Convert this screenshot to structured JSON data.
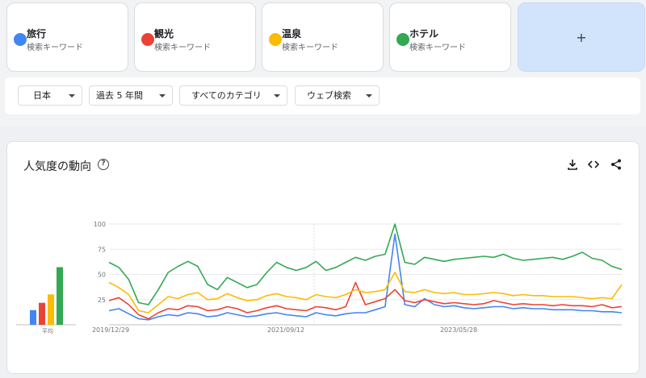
{
  "terms": [
    {
      "name": "旅行",
      "sub": "検索キーワード",
      "color": "#4285f4"
    },
    {
      "name": "観光",
      "sub": "検索キーワード",
      "color": "#ea4335"
    },
    {
      "name": "温泉",
      "sub": "検索キーワード",
      "color": "#fbbc04"
    },
    {
      "name": "ホテル",
      "sub": "検索キーワード",
      "color": "#34a853"
    }
  ],
  "add_button": "+",
  "filters": {
    "region": "日本",
    "period": "過去 5 年間",
    "category": "すべてのカテゴリ",
    "search_type": "ウェブ検索"
  },
  "panel": {
    "title": "人気度の動向",
    "help": "?",
    "icons": [
      "download-icon",
      "embed-code-icon",
      "share-icon"
    ]
  },
  "chart_data": {
    "type": "line",
    "title": "人気度の動向",
    "ylim": [
      0,
      100
    ],
    "yticks": [
      "100",
      "75",
      "50",
      "25"
    ],
    "xticks": [
      "2019/12/29",
      "2021/09/12",
      "2023/05/28"
    ],
    "x_range": [
      "2019/12/29",
      "2024/12"
    ],
    "grid": true,
    "series": [
      {
        "name": "旅行",
        "color": "#4285f4",
        "average": 14,
        "values": [
          14,
          16,
          11,
          6,
          5,
          8,
          10,
          9,
          12,
          11,
          8,
          9,
          12,
          10,
          8,
          9,
          11,
          12,
          10,
          9,
          8,
          12,
          10,
          9,
          11,
          12,
          12,
          15,
          18,
          90,
          20,
          18,
          26,
          20,
          18,
          19,
          17,
          16,
          17,
          18,
          18,
          16,
          17,
          16,
          16,
          15,
          15,
          15,
          14,
          14,
          13,
          13,
          12
        ]
      },
      {
        "name": "観光",
        "color": "#ea4335",
        "average": 21,
        "values": [
          24,
          27,
          20,
          10,
          6,
          12,
          16,
          15,
          19,
          18,
          14,
          15,
          18,
          16,
          12,
          14,
          17,
          19,
          16,
          15,
          14,
          18,
          17,
          15,
          18,
          42,
          20,
          23,
          26,
          35,
          24,
          22,
          25,
          23,
          21,
          22,
          21,
          20,
          21,
          24,
          22,
          20,
          21,
          20,
          20,
          19,
          20,
          19,
          19,
          18,
          20,
          17,
          18
        ]
      },
      {
        "name": "温泉",
        "color": "#fbbc04",
        "average": 29,
        "values": [
          42,
          37,
          30,
          14,
          12,
          20,
          28,
          26,
          30,
          32,
          25,
          26,
          31,
          27,
          24,
          25,
          29,
          31,
          28,
          27,
          25,
          30,
          28,
          27,
          30,
          35,
          32,
          33,
          35,
          52,
          33,
          32,
          35,
          32,
          31,
          32,
          30,
          30,
          31,
          32,
          31,
          29,
          30,
          29,
          29,
          28,
          28,
          28,
          27,
          26,
          27,
          26,
          40
        ]
      },
      {
        "name": "ホテル",
        "color": "#34a853",
        "average": 55,
        "values": [
          62,
          57,
          45,
          22,
          20,
          35,
          52,
          58,
          63,
          58,
          40,
          35,
          47,
          42,
          37,
          40,
          52,
          62,
          57,
          54,
          57,
          63,
          54,
          57,
          62,
          67,
          64,
          68,
          70,
          100,
          62,
          60,
          67,
          65,
          63,
          65,
          66,
          67,
          68,
          67,
          70,
          66,
          64,
          65,
          66,
          67,
          65,
          68,
          72,
          66,
          64,
          58,
          55
        ]
      }
    ]
  }
}
